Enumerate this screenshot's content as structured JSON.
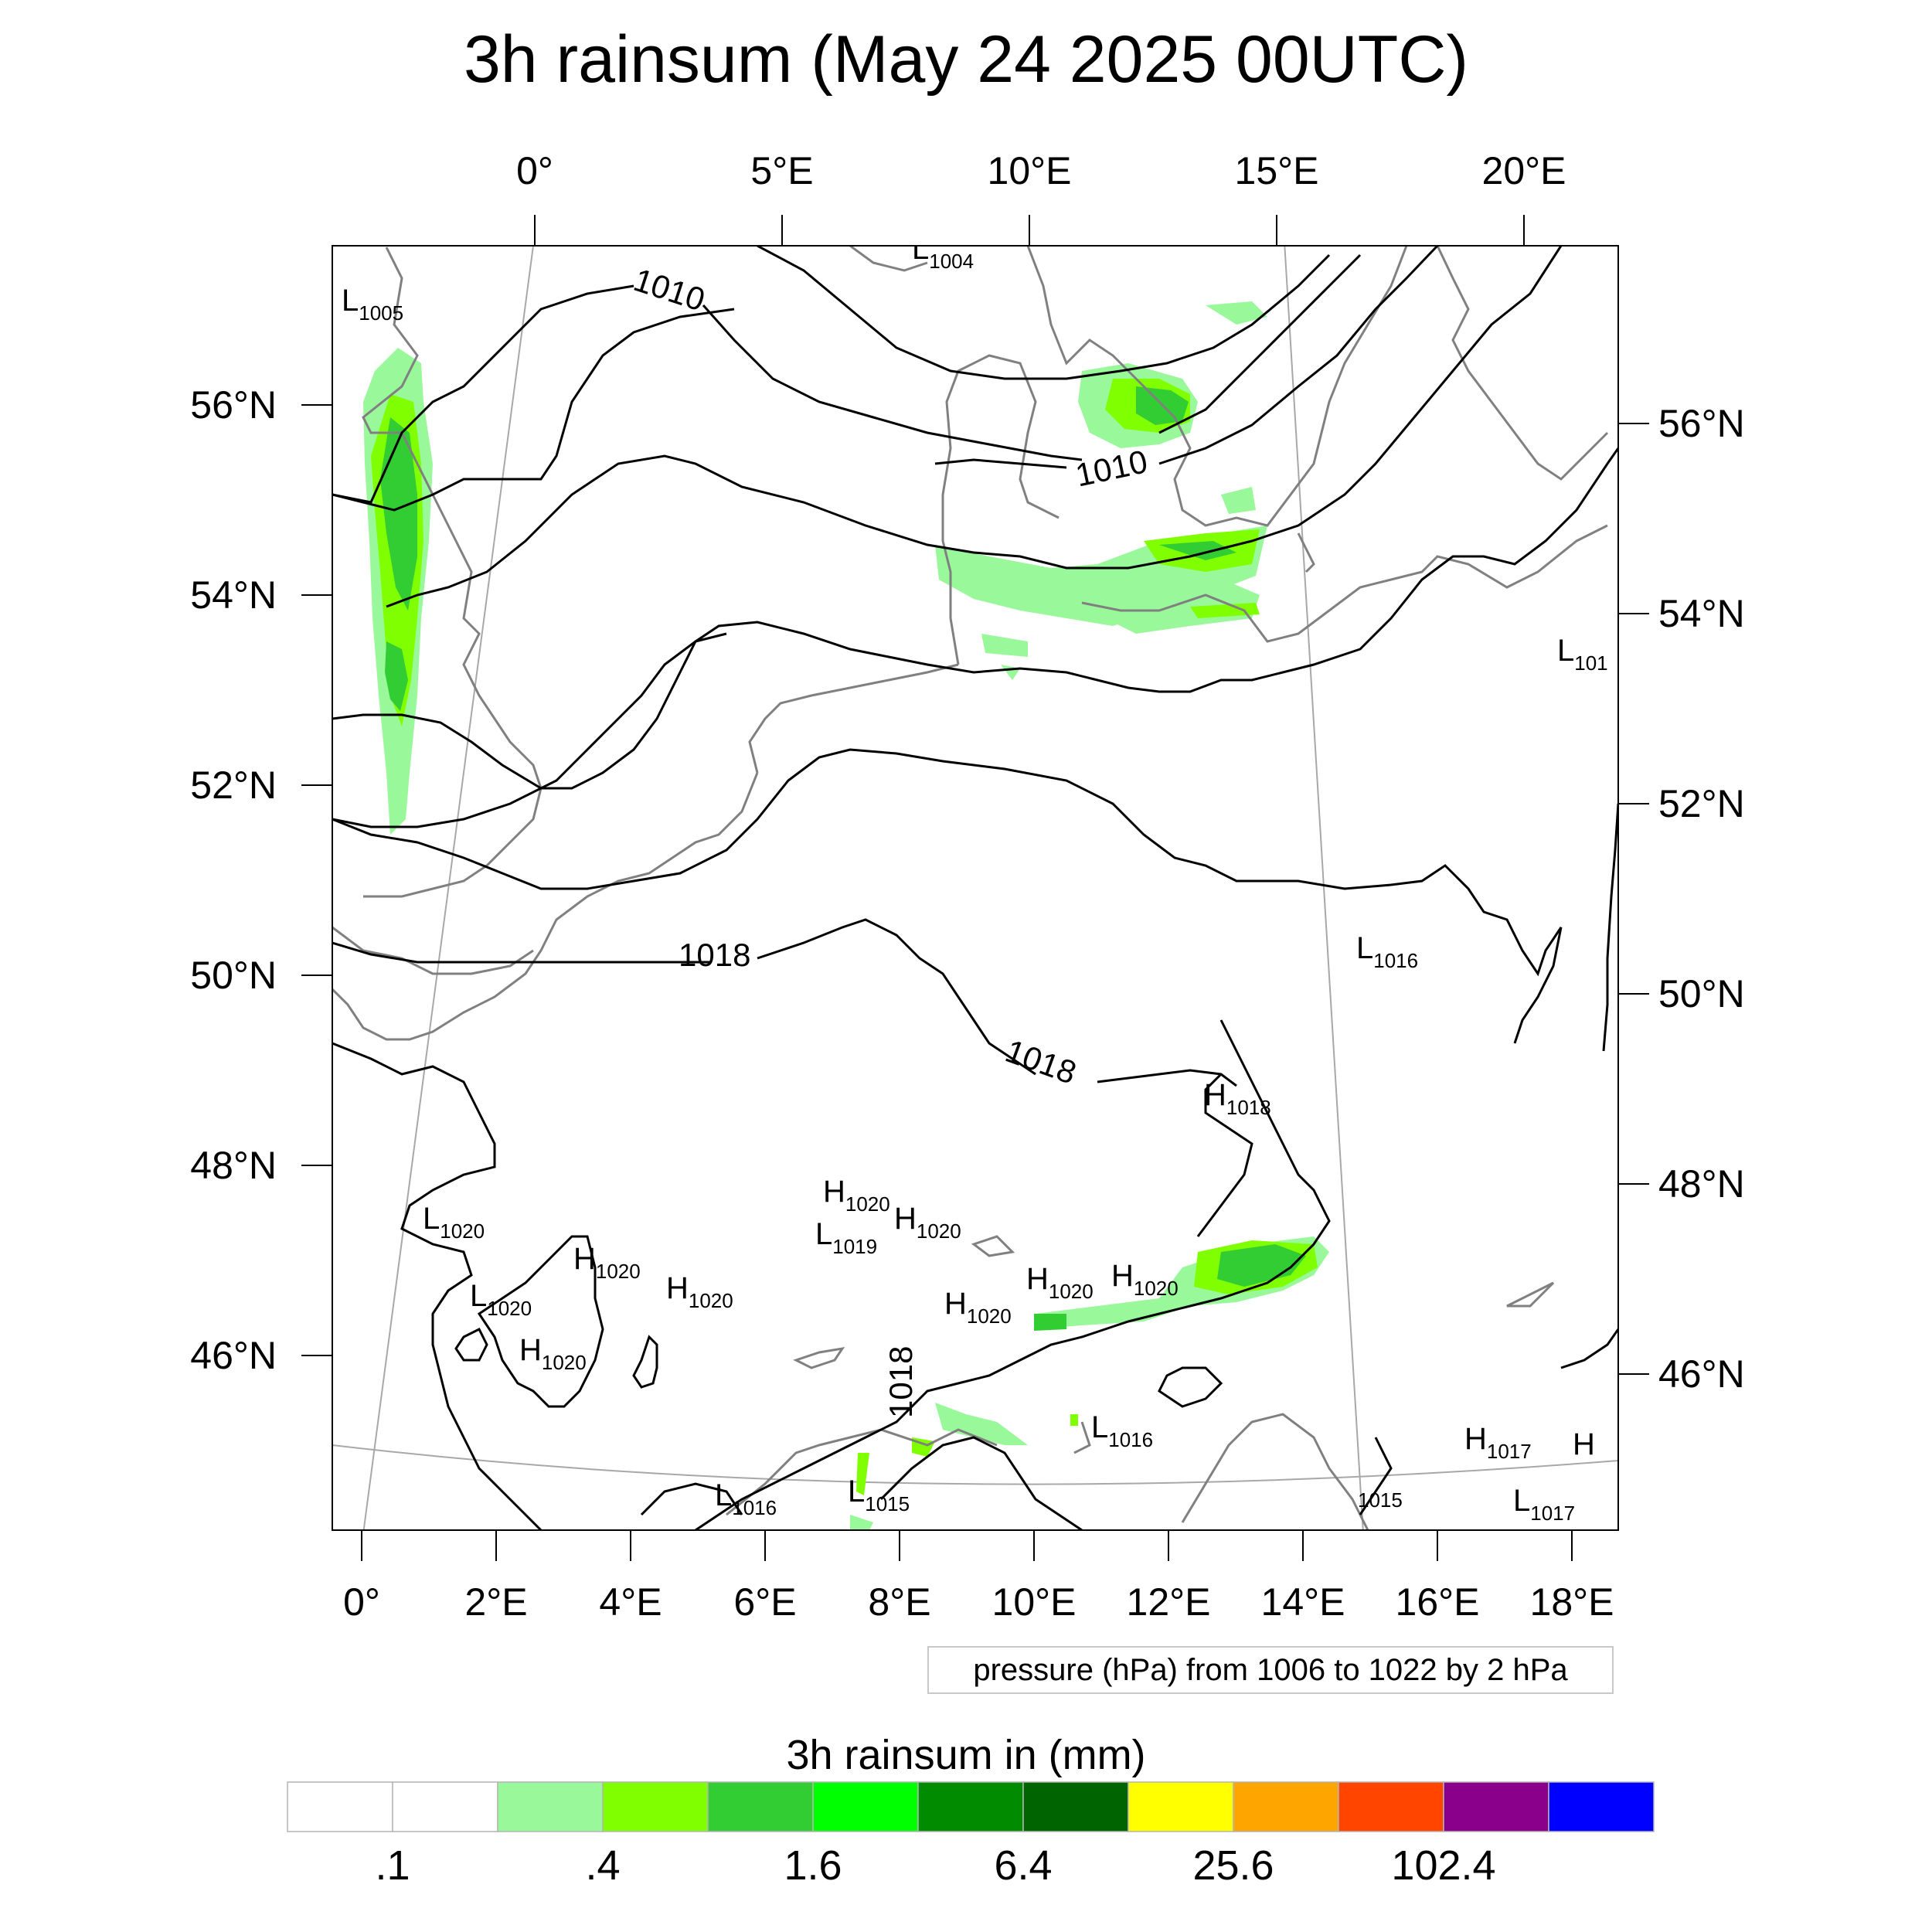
{
  "title": "3h rainsum (May 24 2025 00UTC)",
  "map": {
    "top_lon_labels": [
      "0°",
      "5°E",
      "10°E",
      "15°E",
      "20°E"
    ],
    "bottom_lon_labels": [
      "0°",
      "2°E",
      "4°E",
      "6°E",
      "8°E",
      "10°E",
      "12°E",
      "14°E",
      "16°E",
      "18°E"
    ],
    "left_lat_labels": [
      "56°N",
      "54°N",
      "52°N",
      "50°N",
      "48°N",
      "46°N"
    ],
    "right_lat_labels": [
      "56°N",
      "54°N",
      "52°N",
      "50°N",
      "48°N",
      "46°N"
    ],
    "isobar_labels": [
      "1010",
      "1010",
      "1018",
      "1018",
      "1018"
    ],
    "pressure_centers": [
      {
        "type": "L",
        "value": "1005"
      },
      {
        "type": "L",
        "value": "1004"
      },
      {
        "type": "L",
        "value": "101"
      },
      {
        "type": "L",
        "value": "1016"
      },
      {
        "type": "H",
        "value": "1018"
      },
      {
        "type": "L",
        "value": "1020"
      },
      {
        "type": "H",
        "value": "1020"
      },
      {
        "type": "L",
        "value": "1020"
      },
      {
        "type": "H",
        "value": "1020"
      },
      {
        "type": "H",
        "value": "1020"
      },
      {
        "type": "H",
        "value": "1020"
      },
      {
        "type": "L",
        "value": "1019"
      },
      {
        "type": "H",
        "value": "1020"
      },
      {
        "type": "H",
        "value": "1020"
      },
      {
        "type": "H",
        "value": "1020"
      },
      {
        "type": "H",
        "value": "1020"
      },
      {
        "type": "L",
        "value": "1016"
      },
      {
        "type": "L",
        "value": "1016"
      },
      {
        "type": "L",
        "value": "1015"
      },
      {
        "type": "H",
        "value": "1017"
      },
      {
        "type": "H",
        "value": ""
      },
      {
        "type": "L",
        "value": "1017"
      },
      {
        "type": "",
        "value": "1015"
      }
    ],
    "colors": {
      "coastline": "#808080",
      "isobar": "#000000",
      "graticule": "#a0a0a0"
    }
  },
  "contour_info": "pressure (hPa) from 1006 to 1022 by 2 hPa",
  "colorbar": {
    "title": "3h rainsum in (mm)",
    "labels": [
      ".1",
      ".4",
      "1.6",
      "6.4",
      "25.6",
      "102.4"
    ],
    "colors": [
      "#ffffff",
      "#ffffff",
      "#99f899",
      "#7fff00",
      "#32cd32",
      "#00ff00",
      "#008b00",
      "#006400",
      "#ffff00",
      "#ffa500",
      "#ff4500",
      "#8b008b",
      "#0000ff"
    ]
  }
}
